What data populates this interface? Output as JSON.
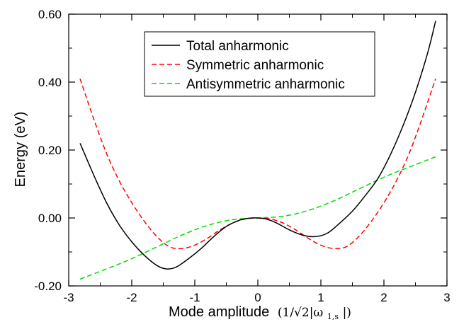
{
  "chart_data": {
    "type": "line",
    "xlabel": "Mode amplitude",
    "xlabel_units": "(1/√2|ω",
    "xlabel_units_sub": "1,s",
    "xlabel_units_end": "|)",
    "ylabel": "Energy (eV)",
    "xlim": [
      -3,
      3
    ],
    "ylim": [
      -0.2,
      0.6
    ],
    "x_ticks": [
      -3,
      -2,
      -1,
      0,
      1,
      2,
      3
    ],
    "x_tick_labels": [
      "-3",
      "-2",
      "-1",
      "0",
      "1",
      "2",
      "3"
    ],
    "y_ticks": [
      -0.2,
      0.0,
      0.2,
      0.4,
      0.6
    ],
    "y_tick_labels": [
      "-0.20",
      "0.00",
      "0.20",
      "0.40",
      "0.60"
    ],
    "grid": false,
    "legend_position": "top-center",
    "series": [
      {
        "name": "Total anharmonic",
        "color": "#000000",
        "dash": "solid",
        "points": [
          [
            -2.82,
            0.22
          ],
          [
            -2.6,
            0.125
          ],
          [
            -2.4,
            0.045
          ],
          [
            -2.2,
            -0.02
          ],
          [
            -2.0,
            -0.07
          ],
          [
            -1.8,
            -0.11
          ],
          [
            -1.6,
            -0.14
          ],
          [
            -1.45,
            -0.15
          ],
          [
            -1.3,
            -0.145
          ],
          [
            -1.1,
            -0.12
          ],
          [
            -0.9,
            -0.09
          ],
          [
            -0.7,
            -0.055
          ],
          [
            -0.5,
            -0.025
          ],
          [
            -0.3,
            -0.007
          ],
          [
            -0.15,
            -0.001
          ],
          [
            0.0,
            0.0
          ],
          [
            0.15,
            -0.004
          ],
          [
            0.3,
            -0.015
          ],
          [
            0.5,
            -0.035
          ],
          [
            0.7,
            -0.05
          ],
          [
            0.9,
            -0.055
          ],
          [
            1.1,
            -0.045
          ],
          [
            1.3,
            -0.015
          ],
          [
            1.5,
            0.02
          ],
          [
            1.7,
            0.065
          ],
          [
            1.9,
            0.115
          ],
          [
            2.1,
            0.185
          ],
          [
            2.3,
            0.27
          ],
          [
            2.5,
            0.37
          ],
          [
            2.7,
            0.49
          ],
          [
            2.82,
            0.58
          ]
        ]
      },
      {
        "name": "Symmetric anharmonic",
        "color": "#ff0000",
        "dash": "dashed",
        "points": [
          [
            -2.82,
            0.41
          ],
          [
            -2.6,
            0.29
          ],
          [
            -2.4,
            0.19
          ],
          [
            -2.2,
            0.11
          ],
          [
            -2.0,
            0.045
          ],
          [
            -1.8,
            -0.01
          ],
          [
            -1.6,
            -0.055
          ],
          [
            -1.4,
            -0.085
          ],
          [
            -1.2,
            -0.09
          ],
          [
            -1.0,
            -0.08
          ],
          [
            -0.8,
            -0.06
          ],
          [
            -0.6,
            -0.035
          ],
          [
            -0.4,
            -0.015
          ],
          [
            -0.2,
            -0.003
          ],
          [
            0.0,
            0.0
          ],
          [
            0.2,
            -0.003
          ],
          [
            0.4,
            -0.015
          ],
          [
            0.6,
            -0.035
          ],
          [
            0.8,
            -0.06
          ],
          [
            1.0,
            -0.08
          ],
          [
            1.2,
            -0.09
          ],
          [
            1.4,
            -0.085
          ],
          [
            1.6,
            -0.055
          ],
          [
            1.8,
            -0.01
          ],
          [
            2.0,
            0.045
          ],
          [
            2.2,
            0.11
          ],
          [
            2.4,
            0.19
          ],
          [
            2.6,
            0.29
          ],
          [
            2.82,
            0.41
          ]
        ]
      },
      {
        "name": "Antisymmetric anharmonic",
        "color": "#00dd00",
        "dash": "dashed",
        "points": [
          [
            -2.82,
            -0.18
          ],
          [
            -2.4,
            -0.15
          ],
          [
            -2.0,
            -0.12
          ],
          [
            -1.6,
            -0.085
          ],
          [
            -1.2,
            -0.05
          ],
          [
            -0.8,
            -0.022
          ],
          [
            -0.4,
            -0.005
          ],
          [
            0.0,
            0.0
          ],
          [
            0.4,
            0.005
          ],
          [
            0.8,
            0.022
          ],
          [
            1.2,
            0.05
          ],
          [
            1.6,
            0.085
          ],
          [
            2.0,
            0.12
          ],
          [
            2.4,
            0.15
          ],
          [
            2.82,
            0.18
          ]
        ]
      }
    ]
  }
}
